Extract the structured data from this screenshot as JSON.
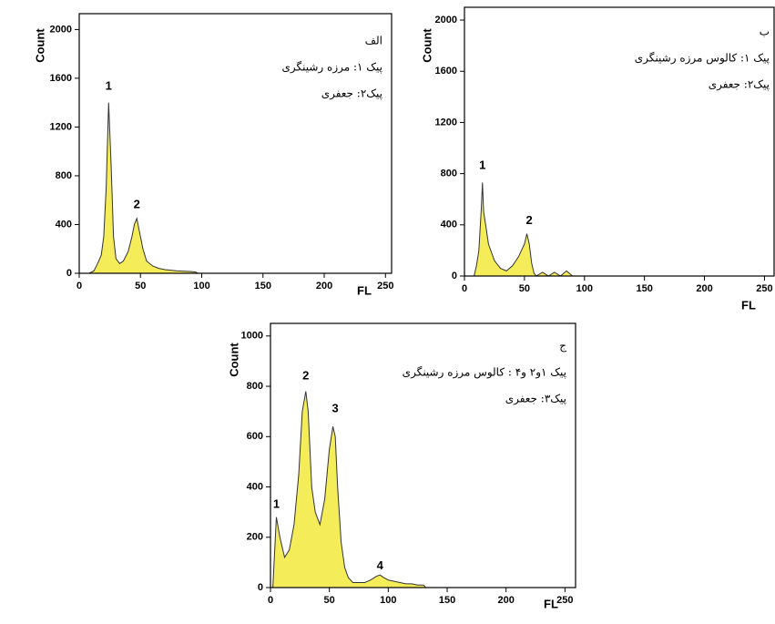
{
  "chart_data": [
    {
      "type": "area",
      "notes": [
        "الف",
        "پیک ۱: مرزه رشینگری",
        "پیک۲: جعفری"
      ],
      "x_label": "FL",
      "y_label": "Count",
      "x": [
        8,
        12,
        15,
        18,
        20,
        22,
        24,
        26,
        28,
        30,
        33,
        36,
        40,
        43,
        45,
        47,
        49,
        52,
        55,
        60,
        65,
        70,
        80,
        90,
        95,
        97
      ],
      "series": [
        {
          "color": "#f5ec5a",
          "values": [
            0,
            20,
            80,
            150,
            300,
            700,
            1400,
            900,
            300,
            120,
            80,
            100,
            180,
            300,
            400,
            450,
            350,
            200,
            100,
            60,
            40,
            30,
            20,
            15,
            10,
            0
          ]
        }
      ],
      "annotations": [
        {
          "text": "1",
          "x": 24,
          "y": 1530
        },
        {
          "text": "2",
          "x": 47,
          "y": 560
        }
      ],
      "xlim": [
        0,
        255
      ],
      "ylim": [
        0,
        2130
      ],
      "xticks": [
        0,
        50,
        100,
        150,
        200,
        250
      ],
      "yticks": [
        0,
        400,
        800,
        1200,
        1600,
        2000
      ]
    },
    {
      "type": "area",
      "notes": [
        "ب",
        "پیک ۱: کالوس مرزه رشینگری",
        "پیک۲: جعفری"
      ],
      "x_label": "FL",
      "y_label": "Count",
      "x": [
        8,
        10,
        12,
        14,
        15,
        16,
        18,
        20,
        25,
        30,
        35,
        40,
        45,
        50,
        52,
        54,
        56,
        58,
        60,
        65,
        70,
        75,
        80,
        85,
        90,
        92
      ],
      "series": [
        {
          "color": "#f5ec5a",
          "values": [
            0,
            80,
            200,
            520,
            730,
            500,
            380,
            250,
            120,
            60,
            40,
            80,
            150,
            250,
            330,
            250,
            100,
            20,
            0,
            30,
            0,
            30,
            0,
            40,
            0,
            0
          ]
        }
      ],
      "annotations": [
        {
          "text": "1",
          "x": 15,
          "y": 860
        },
        {
          "text": "2",
          "x": 54,
          "y": 430
        }
      ],
      "xlim": [
        0,
        258
      ],
      "ylim": [
        0,
        2100
      ],
      "xticks": [
        0,
        50,
        100,
        150,
        200,
        250
      ],
      "yticks": [
        0,
        400,
        800,
        1200,
        1600,
        2000
      ]
    },
    {
      "type": "area",
      "notes": [
        "ج",
        "پیک ۱و۲ و۴ : کالوس مرزه رشینگری",
        "پیک۳: جعفری"
      ],
      "x_label": "FL",
      "y_label": "Count",
      "x": [
        2,
        5,
        8,
        12,
        16,
        20,
        24,
        27,
        30,
        32,
        35,
        38,
        42,
        46,
        50,
        53,
        55,
        57,
        60,
        63,
        66,
        70,
        75,
        80,
        85,
        90,
        93,
        96,
        100,
        105,
        110,
        115,
        120,
        125,
        130,
        132
      ],
      "series": [
        {
          "color": "#f5ec5a",
          "values": [
            0,
            280,
            200,
            120,
            150,
            250,
            450,
            700,
            780,
            700,
            400,
            300,
            250,
            350,
            550,
            640,
            600,
            400,
            180,
            80,
            40,
            20,
            20,
            20,
            30,
            45,
            50,
            40,
            30,
            25,
            20,
            15,
            15,
            10,
            10,
            0
          ]
        }
      ],
      "annotations": [
        {
          "text": "1",
          "x": 5,
          "y": 330
        },
        {
          "text": "2",
          "x": 30,
          "y": 840
        },
        {
          "text": "3",
          "x": 55,
          "y": 710
        },
        {
          "text": "4",
          "x": 93,
          "y": 85
        }
      ],
      "xlim": [
        0,
        259
      ],
      "ylim": [
        0,
        1050
      ],
      "xticks": [
        0,
        50,
        100,
        150,
        200,
        250
      ],
      "yticks": [
        0,
        200,
        400,
        600,
        800,
        1000
      ]
    }
  ]
}
